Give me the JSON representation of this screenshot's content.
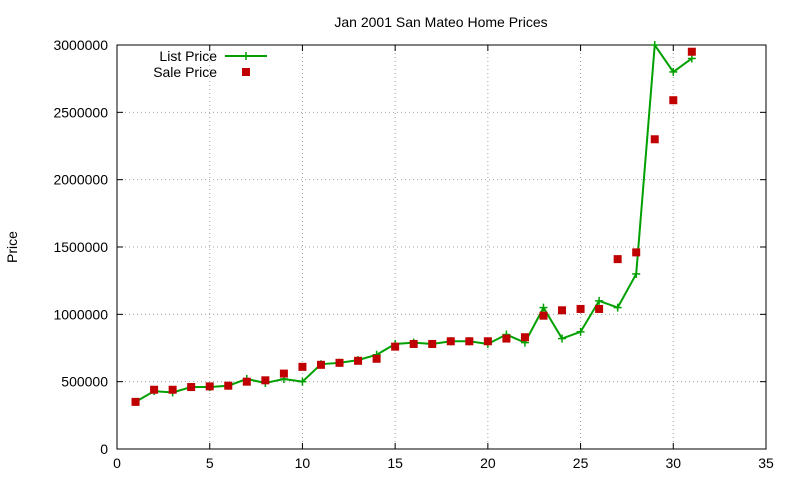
{
  "chart_data": {
    "type": "line",
    "title": "Jan 2001 San Mateo Home Prices",
    "xlabel": "",
    "ylabel": "Price",
    "xlim": [
      0,
      35
    ],
    "ylim": [
      0,
      3000000
    ],
    "xticks": [
      0,
      5,
      10,
      15,
      20,
      25,
      30,
      35
    ],
    "yticks": [
      0,
      500000,
      1000000,
      1500000,
      2000000,
      2500000,
      3000000
    ],
    "grid": true,
    "legend_position": "top-left",
    "series": [
      {
        "name": "List Price",
        "style": "lines+points",
        "marker": "plus",
        "color": "#00a000",
        "x": [
          1,
          2,
          3,
          4,
          5,
          6,
          7,
          8,
          9,
          10,
          11,
          12,
          13,
          14,
          15,
          16,
          17,
          18,
          19,
          20,
          21,
          22,
          23,
          24,
          25,
          26,
          27,
          28,
          29,
          30,
          31
        ],
        "y": [
          350000,
          430000,
          420000,
          460000,
          460000,
          470000,
          520000,
          490000,
          520000,
          500000,
          630000,
          640000,
          660000,
          700000,
          780000,
          790000,
          780000,
          800000,
          800000,
          780000,
          850000,
          790000,
          1050000,
          820000,
          870000,
          1100000,
          1050000,
          1300000,
          3000000,
          2800000,
          2900000
        ]
      },
      {
        "name": "Sale Price",
        "style": "points",
        "marker": "square",
        "color": "#c00000",
        "x": [
          1,
          2,
          3,
          4,
          5,
          6,
          7,
          8,
          9,
          10,
          11,
          12,
          13,
          14,
          15,
          16,
          17,
          18,
          19,
          20,
          21,
          22,
          23,
          24,
          25,
          26,
          27,
          28,
          29,
          30,
          31
        ],
        "y": [
          350000,
          440000,
          440000,
          460000,
          465000,
          470000,
          500000,
          510000,
          560000,
          610000,
          625000,
          640000,
          655000,
          670000,
          760000,
          780000,
          780000,
          800000,
          800000,
          800000,
          820000,
          830000,
          990000,
          1030000,
          1040000,
          1040000,
          1410000,
          1460000,
          2300000,
          2590000,
          2950000
        ]
      }
    ]
  }
}
